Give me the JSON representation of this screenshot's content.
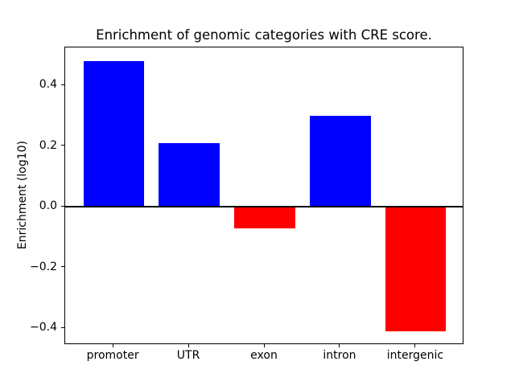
{
  "chart_data": {
    "type": "bar",
    "title": "Enrichment of genomic categories with CRE score.",
    "xlabel": "",
    "ylabel": "Enrichment (log10)",
    "categories": [
      "promoter",
      "UTR",
      "exon",
      "intron",
      "intergenic"
    ],
    "values": [
      0.48,
      0.21,
      -0.07,
      0.3,
      -0.41
    ],
    "colors": [
      "#0000ff",
      "#0000ff",
      "#ff0000",
      "#0000ff",
      "#ff0000"
    ],
    "positive_color": "#0000ff",
    "negative_color": "#ff0000",
    "axis_color": "#000000",
    "background_color": "#ffffff",
    "ylim": [
      -0.4545,
      0.5245
    ],
    "xlim": [
      -0.64,
      4.64
    ],
    "bar_width_fraction": 0.8,
    "yticks": [
      0.4,
      0.2,
      0.0,
      -0.2,
      -0.4
    ],
    "ytick_labels": [
      "0.4",
      "0.2",
      "0.0",
      "−0.2",
      "−0.4"
    ],
    "grid": false,
    "legend": false,
    "zero_line": true
  }
}
